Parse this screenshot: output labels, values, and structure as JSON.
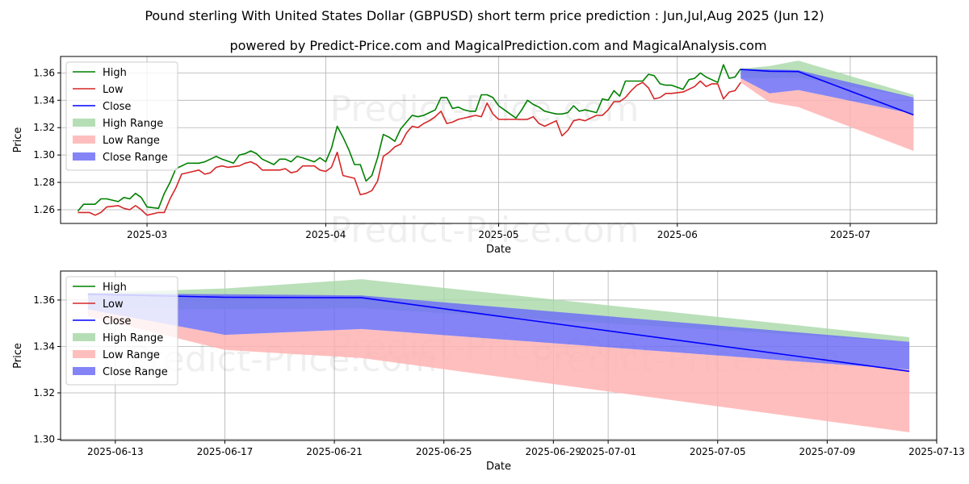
{
  "title": "Pound sterling With United States Dollar (GBPUSD) short term price prediction : Jun,Jul,Aug 2025 (Jun 12)",
  "subtitle": "powered by Predict-Price.com and MagicalPrediction.com and MagicalAnalysis.com",
  "watermark": "Predict-Price.com",
  "colors": {
    "high": "#008000",
    "low": "#d62728",
    "close": "#0000ff",
    "high_range": "#a9d8a9",
    "low_range": "#ffb3b3",
    "close_range": "#6f6ff5"
  },
  "legend": {
    "position": "top-left",
    "items": [
      {
        "label": "High",
        "kind": "line",
        "color_key": "high"
      },
      {
        "label": "Low",
        "kind": "line",
        "color_key": "low"
      },
      {
        "label": "Close",
        "kind": "line",
        "color_key": "close"
      },
      {
        "label": "High Range",
        "kind": "patch",
        "color_key": "high_range"
      },
      {
        "label": "Low Range",
        "kind": "patch",
        "color_key": "low_range"
      },
      {
        "label": "Close Range",
        "kind": "patch",
        "color_key": "close_range"
      }
    ]
  },
  "chart_data": [
    {
      "type": "line",
      "xlabel": "Date",
      "ylabel": "Price",
      "grid": true,
      "xlim": [
        "2025-02-14",
        "2025-07-16"
      ],
      "ylim": [
        1.25,
        1.372
      ],
      "xticks": [
        "2025-03-01",
        "2025-04-01",
        "2025-05-01",
        "2025-06-01",
        "2025-07-01"
      ],
      "xtick_labels": [
        "2025-03",
        "2025-04",
        "2025-05",
        "2025-06",
        "2025-07"
      ],
      "yticks": [
        1.26,
        1.28,
        1.3,
        1.32,
        1.34,
        1.36
      ],
      "ytick_labels": [
        "1.26",
        "1.28",
        "1.30",
        "1.32",
        "1.34",
        "1.36"
      ],
      "history": {
        "high": [
          [
            "2025-02-17",
            1.259
          ],
          [
            "2025-02-18",
            1.264
          ],
          [
            "2025-02-19",
            1.264
          ],
          [
            "2025-02-20",
            1.264
          ],
          [
            "2025-02-21",
            1.268
          ],
          [
            "2025-02-22",
            1.268
          ],
          [
            "2025-02-24",
            1.266
          ],
          [
            "2025-02-25",
            1.269
          ],
          [
            "2025-02-26",
            1.268
          ],
          [
            "2025-02-27",
            1.272
          ],
          [
            "2025-02-28",
            1.269
          ],
          [
            "2025-03-01",
            1.262
          ],
          [
            "2025-03-03",
            1.261
          ],
          [
            "2025-03-04",
            1.272
          ],
          [
            "2025-03-05",
            1.28
          ],
          [
            "2025-03-06",
            1.29
          ],
          [
            "2025-03-08",
            1.294
          ],
          [
            "2025-03-10",
            1.294
          ],
          [
            "2025-03-11",
            1.295
          ],
          [
            "2025-03-12",
            1.297
          ],
          [
            "2025-03-13",
            1.299
          ],
          [
            "2025-03-14",
            1.297
          ],
          [
            "2025-03-16",
            1.294
          ],
          [
            "2025-03-17",
            1.3
          ],
          [
            "2025-03-18",
            1.301
          ],
          [
            "2025-03-19",
            1.303
          ],
          [
            "2025-03-20",
            1.301
          ],
          [
            "2025-03-21",
            1.297
          ],
          [
            "2025-03-22",
            1.295
          ],
          [
            "2025-03-23",
            1.293
          ],
          [
            "2025-03-24",
            1.297
          ],
          [
            "2025-03-25",
            1.297
          ],
          [
            "2025-03-26",
            1.295
          ],
          [
            "2025-03-27",
            1.299
          ],
          [
            "2025-03-28",
            1.298
          ],
          [
            "2025-03-30",
            1.295
          ],
          [
            "2025-03-31",
            1.298
          ],
          [
            "2025-04-01",
            1.295
          ],
          [
            "2025-04-02",
            1.305
          ],
          [
            "2025-04-03",
            1.321
          ],
          [
            "2025-04-04",
            1.313
          ],
          [
            "2025-04-05",
            1.304
          ],
          [
            "2025-04-06",
            1.293
          ],
          [
            "2025-04-07",
            1.293
          ],
          [
            "2025-04-08",
            1.281
          ],
          [
            "2025-04-09",
            1.285
          ],
          [
            "2025-04-10",
            1.298
          ],
          [
            "2025-04-11",
            1.315
          ],
          [
            "2025-04-12",
            1.313
          ],
          [
            "2025-04-13",
            1.31
          ],
          [
            "2025-04-14",
            1.319
          ],
          [
            "2025-04-15",
            1.324
          ],
          [
            "2025-04-16",
            1.329
          ],
          [
            "2025-04-17",
            1.328
          ],
          [
            "2025-04-18",
            1.329
          ],
          [
            "2025-04-19",
            1.331
          ],
          [
            "2025-04-20",
            1.333
          ],
          [
            "2025-04-21",
            1.342
          ],
          [
            "2025-04-22",
            1.342
          ],
          [
            "2025-04-23",
            1.334
          ],
          [
            "2025-04-24",
            1.335
          ],
          [
            "2025-04-25",
            1.333
          ],
          [
            "2025-04-26",
            1.332
          ],
          [
            "2025-04-27",
            1.332
          ],
          [
            "2025-04-28",
            1.344
          ],
          [
            "2025-04-29",
            1.344
          ],
          [
            "2025-04-30",
            1.342
          ],
          [
            "2025-05-01",
            1.336
          ],
          [
            "2025-05-02",
            1.333
          ],
          [
            "2025-05-03",
            1.33
          ],
          [
            "2025-05-04",
            1.327
          ],
          [
            "2025-05-05",
            1.333
          ],
          [
            "2025-05-06",
            1.34
          ],
          [
            "2025-05-07",
            1.337
          ],
          [
            "2025-05-08",
            1.335
          ],
          [
            "2025-05-09",
            1.332
          ],
          [
            "2025-05-10",
            1.331
          ],
          [
            "2025-05-11",
            1.33
          ],
          [
            "2025-05-12",
            1.33
          ],
          [
            "2025-05-13",
            1.331
          ],
          [
            "2025-05-14",
            1.336
          ],
          [
            "2025-05-15",
            1.332
          ],
          [
            "2025-05-16",
            1.333
          ],
          [
            "2025-05-17",
            1.332
          ],
          [
            "2025-05-18",
            1.331
          ],
          [
            "2025-05-19",
            1.341
          ],
          [
            "2025-05-20",
            1.34
          ],
          [
            "2025-05-21",
            1.347
          ],
          [
            "2025-05-22",
            1.343
          ],
          [
            "2025-05-23",
            1.354
          ],
          [
            "2025-05-24",
            1.354
          ],
          [
            "2025-05-25",
            1.354
          ],
          [
            "2025-05-26",
            1.354
          ],
          [
            "2025-05-27",
            1.359
          ],
          [
            "2025-05-28",
            1.358
          ],
          [
            "2025-05-29",
            1.352
          ],
          [
            "2025-05-30",
            1.351
          ],
          [
            "2025-05-31",
            1.351
          ],
          [
            "2025-06-02",
            1.348
          ],
          [
            "2025-06-03",
            1.355
          ],
          [
            "2025-06-04",
            1.356
          ],
          [
            "2025-06-05",
            1.36
          ],
          [
            "2025-06-06",
            1.357
          ],
          [
            "2025-06-07",
            1.355
          ],
          [
            "2025-06-08",
            1.353
          ],
          [
            "2025-06-09",
            1.366
          ],
          [
            "2025-06-10",
            1.356
          ],
          [
            "2025-06-11",
            1.357
          ],
          [
            "2025-06-12",
            1.363
          ]
        ],
        "low": [
          [
            "2025-02-17",
            1.258
          ],
          [
            "2025-02-18",
            1.258
          ],
          [
            "2025-02-19",
            1.258
          ],
          [
            "2025-02-20",
            1.256
          ],
          [
            "2025-02-21",
            1.258
          ],
          [
            "2025-02-22",
            1.262
          ],
          [
            "2025-02-24",
            1.263
          ],
          [
            "2025-02-25",
            1.261
          ],
          [
            "2025-02-26",
            1.26
          ],
          [
            "2025-02-27",
            1.263
          ],
          [
            "2025-02-28",
            1.26
          ],
          [
            "2025-03-01",
            1.256
          ],
          [
            "2025-03-03",
            1.258
          ],
          [
            "2025-03-04",
            1.258
          ],
          [
            "2025-03-05",
            1.268
          ],
          [
            "2025-03-06",
            1.276
          ],
          [
            "2025-03-07",
            1.286
          ],
          [
            "2025-03-09",
            1.288
          ],
          [
            "2025-03-10",
            1.289
          ],
          [
            "2025-03-11",
            1.286
          ],
          [
            "2025-03-12",
            1.287
          ],
          [
            "2025-03-13",
            1.291
          ],
          [
            "2025-03-14",
            1.292
          ],
          [
            "2025-03-15",
            1.291
          ],
          [
            "2025-03-17",
            1.292
          ],
          [
            "2025-03-18",
            1.294
          ],
          [
            "2025-03-19",
            1.295
          ],
          [
            "2025-03-20",
            1.293
          ],
          [
            "2025-03-21",
            1.289
          ],
          [
            "2025-03-22",
            1.289
          ],
          [
            "2025-03-24",
            1.289
          ],
          [
            "2025-03-25",
            1.29
          ],
          [
            "2025-03-26",
            1.287
          ],
          [
            "2025-03-27",
            1.288
          ],
          [
            "2025-03-28",
            1.292
          ],
          [
            "2025-03-30",
            1.292
          ],
          [
            "2025-03-31",
            1.289
          ],
          [
            "2025-04-01",
            1.288
          ],
          [
            "2025-04-02",
            1.291
          ],
          [
            "2025-04-03",
            1.302
          ],
          [
            "2025-04-04",
            1.285
          ],
          [
            "2025-04-06",
            1.283
          ],
          [
            "2025-04-07",
            1.271
          ],
          [
            "2025-04-08",
            1.272
          ],
          [
            "2025-04-09",
            1.274
          ],
          [
            "2025-04-10",
            1.281
          ],
          [
            "2025-04-11",
            1.299
          ],
          [
            "2025-04-12",
            1.302
          ],
          [
            "2025-04-13",
            1.306
          ],
          [
            "2025-04-14",
            1.308
          ],
          [
            "2025-04-15",
            1.316
          ],
          [
            "2025-04-16",
            1.321
          ],
          [
            "2025-04-17",
            1.32
          ],
          [
            "2025-04-18",
            1.323
          ],
          [
            "2025-04-19",
            1.325
          ],
          [
            "2025-04-20",
            1.328
          ],
          [
            "2025-04-21",
            1.332
          ],
          [
            "2025-04-22",
            1.323
          ],
          [
            "2025-04-23",
            1.324
          ],
          [
            "2025-04-24",
            1.326
          ],
          [
            "2025-04-25",
            1.327
          ],
          [
            "2025-04-26",
            1.328
          ],
          [
            "2025-04-27",
            1.329
          ],
          [
            "2025-04-28",
            1.328
          ],
          [
            "2025-04-29",
            1.338
          ],
          [
            "2025-04-30",
            1.33
          ],
          [
            "2025-05-01",
            1.326
          ],
          [
            "2025-05-02",
            1.326
          ],
          [
            "2025-05-03",
            1.326
          ],
          [
            "2025-05-04",
            1.326
          ],
          [
            "2025-05-05",
            1.326
          ],
          [
            "2025-05-06",
            1.326
          ],
          [
            "2025-05-07",
            1.328
          ],
          [
            "2025-05-08",
            1.323
          ],
          [
            "2025-05-09",
            1.321
          ],
          [
            "2025-05-10",
            1.323
          ],
          [
            "2025-05-11",
            1.325
          ],
          [
            "2025-05-12",
            1.314
          ],
          [
            "2025-05-13",
            1.318
          ],
          [
            "2025-05-14",
            1.325
          ],
          [
            "2025-05-15",
            1.326
          ],
          [
            "2025-05-16",
            1.325
          ],
          [
            "2025-05-17",
            1.327
          ],
          [
            "2025-05-18",
            1.329
          ],
          [
            "2025-05-19",
            1.329
          ],
          [
            "2025-05-20",
            1.333
          ],
          [
            "2025-05-21",
            1.339
          ],
          [
            "2025-05-22",
            1.339
          ],
          [
            "2025-05-23",
            1.342
          ],
          [
            "2025-05-24",
            1.347
          ],
          [
            "2025-05-25",
            1.351
          ],
          [
            "2025-05-26",
            1.353
          ],
          [
            "2025-05-27",
            1.349
          ],
          [
            "2025-05-28",
            1.341
          ],
          [
            "2025-05-29",
            1.342
          ],
          [
            "2025-05-30",
            1.345
          ],
          [
            "2025-05-31",
            1.345
          ],
          [
            "2025-06-02",
            1.346
          ],
          [
            "2025-06-03",
            1.348
          ],
          [
            "2025-06-04",
            1.35
          ],
          [
            "2025-06-05",
            1.354
          ],
          [
            "2025-06-06",
            1.35
          ],
          [
            "2025-06-07",
            1.352
          ],
          [
            "2025-06-08",
            1.352
          ],
          [
            "2025-06-09",
            1.341
          ],
          [
            "2025-06-10",
            1.346
          ],
          [
            "2025-06-11",
            1.347
          ],
          [
            "2025-06-12",
            1.353
          ]
        ]
      },
      "forecast": {
        "dates": [
          "2025-06-12",
          "2025-06-17",
          "2025-06-22",
          "2025-07-12"
        ],
        "close": [
          1.3625,
          1.3612,
          1.361,
          1.3293
        ],
        "high_range": {
          "upper": [
            1.363,
            1.365,
            1.369,
            1.344
          ],
          "lower": [
            1.356,
            1.356,
            1.3565,
            1.342
          ]
        },
        "low_range": {
          "upper": [
            1.356,
            1.345,
            1.3475,
            1.33
          ],
          "lower": [
            1.353,
            1.3385,
            1.335,
            1.303
          ]
        },
        "close_range": {
          "upper": [
            1.363,
            1.3625,
            1.362,
            1.342
          ],
          "lower": [
            1.356,
            1.345,
            1.3475,
            1.33
          ]
        }
      }
    },
    {
      "type": "line",
      "xlabel": "Date",
      "ylabel": "Price",
      "grid": true,
      "xlim": [
        "2025-06-11",
        "2025-07-13"
      ],
      "ylim": [
        1.2995,
        1.3725
      ],
      "xticks": [
        "2025-06-13",
        "2025-06-17",
        "2025-06-21",
        "2025-06-25",
        "2025-06-29",
        "2025-07-01",
        "2025-07-05",
        "2025-07-09",
        "2025-07-13"
      ],
      "xtick_labels": [
        "2025-06-13",
        "2025-06-17",
        "2025-06-21",
        "2025-06-25",
        "2025-06-29",
        "2025-07-01",
        "2025-07-05",
        "2025-07-09",
        "2025-07-13"
      ],
      "yticks": [
        1.3,
        1.32,
        1.34,
        1.36
      ],
      "ytick_labels": [
        "1.30",
        "1.32",
        "1.34",
        "1.36"
      ],
      "forecast": {
        "dates": [
          "2025-06-12",
          "2025-06-17",
          "2025-06-22",
          "2025-07-12"
        ],
        "close": [
          1.3625,
          1.3612,
          1.361,
          1.3293
        ],
        "high_range": {
          "upper": [
            1.363,
            1.365,
            1.369,
            1.344
          ],
          "lower": [
            1.356,
            1.356,
            1.3565,
            1.342
          ]
        },
        "low_range": {
          "upper": [
            1.356,
            1.345,
            1.3475,
            1.33
          ],
          "lower": [
            1.353,
            1.3385,
            1.335,
            1.303
          ]
        },
        "close_range": {
          "upper": [
            1.363,
            1.3625,
            1.362,
            1.342
          ],
          "lower": [
            1.356,
            1.345,
            1.3475,
            1.33
          ]
        }
      }
    }
  ]
}
